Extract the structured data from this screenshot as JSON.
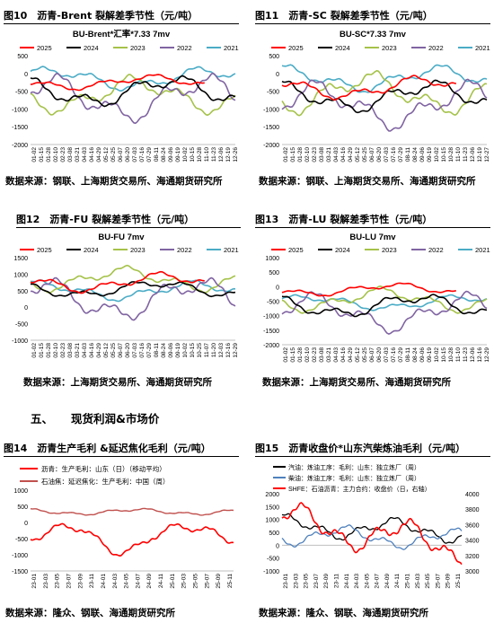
{
  "section": {
    "number": "五、",
    "title": "现货利润&市场价"
  },
  "source_common": "数据来源：钢联、上海期货交易所、海通期货研究所",
  "panels": [
    {
      "id": "fig10",
      "fig_title": "图10　沥青-Brent 裂解差季节性（元/吨）",
      "source": "数据来源：钢联、上海期货交易所、海通期货研究所",
      "chart_title": "BU-Brent*汇率*7.33 7mv",
      "legend": [
        "2025",
        "2024",
        "2023",
        "2022",
        "2021"
      ],
      "x_ticks": [
        "01-02",
        "01-15",
        "01-28",
        "02-10",
        "02-23",
        "03-08",
        "03-21",
        "04-03",
        "04-16",
        "04-29",
        "05-12",
        "05-25",
        "06-07",
        "06-20",
        "07-03",
        "07-16",
        "07-29",
        "08-11",
        "08-24",
        "09-06",
        "09-19",
        "10-02",
        "10-15",
        "10-28",
        "11-10",
        "11-23",
        "12-06",
        "12-19",
        "12-26"
      ],
      "y_ticks": [
        "500",
        "0",
        "-500",
        "-1000",
        "-1500",
        "-2000"
      ]
    },
    {
      "id": "fig11",
      "fig_title": "图11　沥青-SC 裂解差季节性（元/吨）",
      "source": "数据来源：钢联、上海期货交易所、海通期货研究所",
      "chart_title": "BU-SC*7.33 7mv",
      "legend": [
        "2025",
        "2024",
        "2023",
        "2022",
        "2021"
      ],
      "x_ticks": [
        "01-02",
        "01-15",
        "01-28",
        "02-10",
        "02-23",
        "03-08",
        "03-21",
        "04-03",
        "04-16",
        "04-29",
        "05-12",
        "05-25",
        "06-07",
        "06-20",
        "07-03",
        "07-16",
        "07-29",
        "08-11",
        "08-24",
        "09-06",
        "09-19",
        "10-02",
        "10-15",
        "10-28",
        "11-10",
        "11-23",
        "12-06",
        "12-19",
        "12-27"
      ],
      "y_ticks": [
        "500",
        "0",
        "-500",
        "-1000",
        "-1500",
        "-2000"
      ]
    },
    {
      "id": "fig12",
      "fig_title": "图12　沥青-FU 裂解差季节性（元/吨）",
      "source": "数据来源：上海期货交易所、海通期货研究所",
      "chart_title": "BU-FU 7mv",
      "legend": [
        "2025",
        "2024",
        "2023",
        "2022",
        "2021"
      ],
      "x_ticks": [
        "01-02",
        "01-15",
        "01-28",
        "02-10",
        "02-23",
        "03-08",
        "03-21",
        "04-03",
        "04-16",
        "04-29",
        "05-12",
        "05-25",
        "06-07",
        "06-20",
        "07-03",
        "07-16",
        "07-29",
        "08-11",
        "08-24",
        "09-06",
        "09-19",
        "10-02",
        "10-15",
        "10-25",
        "11-07",
        "11-20",
        "12-03",
        "12-16",
        "12-29"
      ],
      "y_ticks": [
        "1500",
        "1000",
        "500",
        "0",
        "-500",
        "-1000"
      ]
    },
    {
      "id": "fig13",
      "fig_title": "图13　沥青-LU 裂解差季节性（元/吨）",
      "source": "数据来源：上海期货交易所、海通期货研究所",
      "chart_title": "BU-LU 7mv",
      "legend": [
        "2025",
        "2024",
        "2023",
        "2022",
        "2021"
      ],
      "x_ticks": [
        "01-02",
        "01-15",
        "01-28",
        "02-10",
        "02-23",
        "03-08",
        "03-21",
        "04-03",
        "04-16",
        "04-29",
        "05-12",
        "05-25",
        "06-07",
        "06-20",
        "07-03",
        "07-16",
        "07-29",
        "08-11",
        "08-24",
        "09-06",
        "09-19",
        "10-02",
        "10-15",
        "10-28",
        "11-10",
        "11-23",
        "12-06",
        "12-16",
        "12-29"
      ],
      "y_ticks": [
        "1000",
        "500",
        "0",
        "-500",
        "-1000",
        "-1500",
        "-2000"
      ]
    },
    {
      "id": "fig14",
      "fig_title": "图14　沥青生产毛利 &延迟焦化毛利（元/吨）",
      "source": "数据来源：隆众、钢联、海通期货研究所",
      "legend": [
        "沥青：生产毛利：山东（日）（移动平均）",
        "石油焦：延迟焦化：生产毛利：中国（周）"
      ],
      "x_ticks": [
        "23-01",
        "23-03",
        "23-05",
        "23-07",
        "23-09",
        "23-11",
        "24-01",
        "24-03",
        "24-05",
        "24-07",
        "24-09",
        "24-11",
        "25-01",
        "25-03",
        "25-05",
        "25-07",
        "25-09",
        "25-11"
      ],
      "y_ticks": [
        "1000",
        "500",
        "0",
        "-500",
        "-1000",
        "-1500"
      ]
    },
    {
      "id": "fig15",
      "fig_title": "图15　沥青收盘价*山东汽柴炼油毛利（元/吨）",
      "source": "数据来源：隆众、钢联、海通期货研究所",
      "legend": [
        "汽油：炼油工序：毛利：山东：独立炼厂（周）",
        "柴油：炼油工序：毛利：山东：独立炼厂（周）",
        "SHFE：石油沥青：主力合约：收盘价（日，右轴）"
      ],
      "x_ticks": [
        "23-01",
        "23-03",
        "23-05",
        "23-07",
        "23-09",
        "23-11",
        "24-01",
        "24-03",
        "24-05",
        "24-07",
        "24-09",
        "24-11",
        "25-01",
        "25-03",
        "25-05",
        "25-07",
        "25-09",
        "25-11"
      ],
      "y_ticks": [
        "2000",
        "1500",
        "1000",
        "500",
        "0",
        "-500",
        "-1000"
      ],
      "y2_ticks": [
        "4000",
        "3800",
        "3600",
        "3400",
        "3200",
        "3000"
      ]
    }
  ],
  "colors": {
    "y2025": "#ff0000",
    "y2024": "#000000",
    "y2023": "#a5c249",
    "y2022": "#8064a2",
    "y2021": "#4bacc6",
    "steel": "#4f81bd",
    "coke": "#c0504d"
  }
}
